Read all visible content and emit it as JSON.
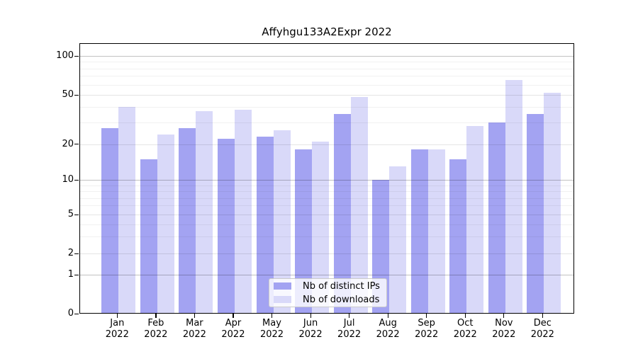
{
  "figure": {
    "background": "#ffffff"
  },
  "chart_data": {
    "type": "bar",
    "title": "Affyhgu133A2Expr 2022",
    "categories": [
      "Jan",
      "Feb",
      "Mar",
      "Apr",
      "May",
      "Jun",
      "Jul",
      "Aug",
      "Sep",
      "Oct",
      "Nov",
      "Dec"
    ],
    "category_year": "2022",
    "series": [
      {
        "name": "Nb of distinct IPs",
        "color": "#a3a3f2",
        "values": [
          27,
          15,
          27,
          22,
          23,
          18,
          35,
          10,
          18,
          15,
          30,
          35
        ]
      },
      {
        "name": "Nb of downloads",
        "color": "#d9d9f9",
        "values": [
          40,
          24,
          37,
          38,
          26,
          21,
          48,
          13,
          18,
          28,
          65,
          52
        ]
      }
    ],
    "yaxis": {
      "scale": "log-like",
      "ticks": [
        100,
        50,
        20,
        10,
        5,
        2,
        1,
        0
      ],
      "minor_gridlines": [
        90,
        80,
        70,
        60,
        40,
        30,
        9,
        8,
        7,
        6,
        4,
        3
      ],
      "ylim": [
        0,
        115
      ]
    },
    "grid": true,
    "legend_position": "bottom-center"
  }
}
